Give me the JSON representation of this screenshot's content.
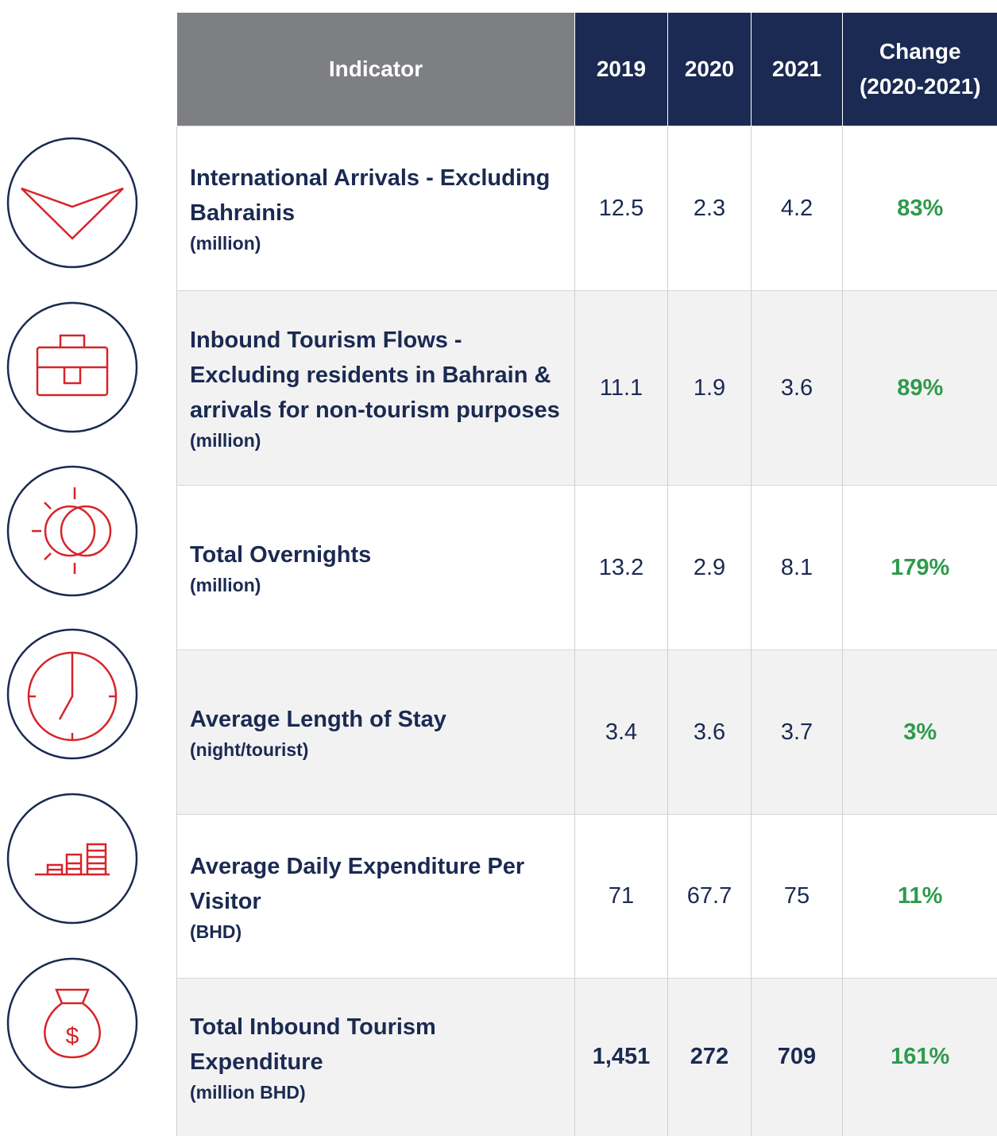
{
  "table": {
    "header": [
      "Indicator",
      "2019",
      "2020",
      "2021",
      "Change (2020-2021)"
    ],
    "rows": [
      {
        "indicator": "International Arrivals - Excluding Bahrainis",
        "unit": "(million)",
        "values": [
          "12.5",
          "2.3",
          "4.2"
        ],
        "change": "83%"
      },
      {
        "indicator": "Inbound Tourism Flows - Excluding residents in Bahrain & arrivals for non-tourism purposes",
        "unit": "(million)",
        "values": [
          "11.1",
          "1.9",
          "3.6"
        ],
        "change": "89%"
      },
      {
        "indicator": "Total Overnights",
        "unit": "(million)",
        "values": [
          "13.2",
          "2.9",
          "8.1"
        ],
        "change": "179%"
      },
      {
        "indicator": "Average Length of Stay",
        "unit": "(night/tourist)",
        "values": [
          "3.4",
          "3.6",
          "3.7"
        ],
        "change": "3%"
      },
      {
        "indicator": "Average Daily Expenditure Per Visitor",
        "unit": "(BHD)",
        "values": [
          "71",
          "67.7",
          "75"
        ],
        "change": "11%"
      },
      {
        "indicator": "Total Inbound Tourism Expenditure",
        "unit": "(million BHD)",
        "values": [
          "1,451",
          "272",
          "709"
        ],
        "change": "161%"
      }
    ]
  }
}
